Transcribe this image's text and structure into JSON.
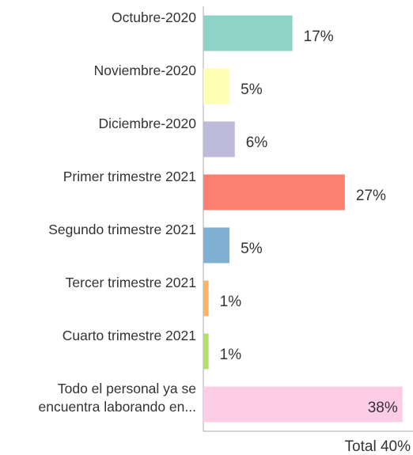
{
  "chart_data": {
    "type": "barh",
    "categories": [
      "Octubre-2020",
      "Noviembre-2020",
      "Diciembre-2020",
      "Primer trimestre 2021",
      "Segundo trimestre 2021",
      "Tercer trimestre 2021",
      "Cuarto trimestre 2021",
      "Todo el personal ya se encuentra laborando en..."
    ],
    "values": [
      17,
      5,
      6,
      27,
      5,
      1,
      1,
      38
    ],
    "value_labels": [
      "17%",
      "5%",
      "6%",
      "27%",
      "5%",
      "1%",
      "1%",
      "38%"
    ],
    "colors": [
      "#8dd3c7",
      "#ffffb3",
      "#bebada",
      "#fb8072",
      "#80b1d3",
      "#fdb462",
      "#b3de69",
      "#fccde5"
    ],
    "xlim": [
      0,
      40
    ],
    "annotation": "Total 40%"
  }
}
